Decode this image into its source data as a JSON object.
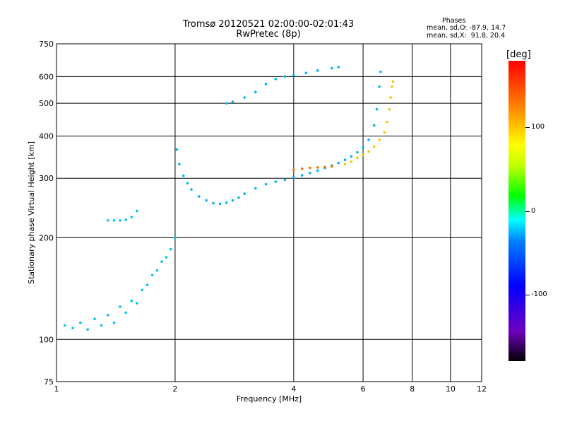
{
  "header": {
    "title_line1": "Tromsø 20120521 02:00:00-02:01:43",
    "title_line2": "RwPretec (8p)"
  },
  "phases_box": {
    "title": "Phases",
    "line_o": "mean, sd,O: -87.9, 14.7",
    "line_x": "mean, sd,X:  91.8, 20.4"
  },
  "colorbar": {
    "unit": "[deg]",
    "ticks": [
      {
        "value": 100,
        "label": "100"
      },
      {
        "value": 0,
        "label": "0"
      },
      {
        "value": -100,
        "label": "-100"
      }
    ],
    "range": [
      -180,
      180
    ]
  },
  "chart_data": {
    "type": "scatter",
    "title": "Tromsø 20120521 02:00:00-02:01:43",
    "subtitle": "RwPretec (8p)",
    "xlabel": "Frequency [MHz]",
    "ylabel": "Stationary phase Virtual Height [km]",
    "xscale": "log",
    "yscale": "log",
    "xlim": [
      1,
      12
    ],
    "ylim": [
      75,
      750
    ],
    "xticks": [
      1,
      2,
      4,
      6,
      8,
      10,
      12
    ],
    "yticks": [
      75,
      100,
      200,
      300,
      400,
      500,
      600,
      750
    ],
    "color_by": "phase (deg)",
    "grid": true,
    "traces": [
      {
        "name": "",
        "phase": -95,
        "points": [
          [
            1.05,
            110
          ],
          [
            1.1,
            108
          ],
          [
            1.15,
            112
          ],
          [
            1.2,
            107
          ],
          [
            1.25,
            115
          ],
          [
            1.3,
            110
          ],
          [
            1.35,
            118
          ],
          [
            1.4,
            112
          ],
          [
            1.45,
            125
          ],
          [
            1.5,
            120
          ],
          [
            1.55,
            130
          ],
          [
            1.6,
            128
          ],
          [
            1.65,
            140
          ],
          [
            1.7,
            145
          ],
          [
            1.75,
            155
          ],
          [
            1.8,
            160
          ],
          [
            1.85,
            170
          ],
          [
            1.9,
            175
          ],
          [
            1.95,
            185
          ],
          [
            2.0,
            200
          ]
        ]
      },
      {
        "name": "",
        "phase": -95,
        "points": [
          [
            1.35,
            225
          ],
          [
            1.4,
            225
          ],
          [
            1.45,
            225
          ],
          [
            1.5,
            226
          ],
          [
            1.55,
            230
          ],
          [
            1.6,
            240
          ]
        ]
      },
      {
        "name": "",
        "phase": -100,
        "points": [
          [
            2.02,
            365
          ],
          [
            2.05,
            330
          ],
          [
            2.1,
            305
          ],
          [
            2.15,
            290
          ],
          [
            2.2,
            278
          ],
          [
            2.3,
            265
          ],
          [
            2.4,
            258
          ],
          [
            2.5,
            253
          ],
          [
            2.6,
            252
          ],
          [
            2.7,
            254
          ],
          [
            2.8,
            258
          ],
          [
            2.9,
            263
          ],
          [
            3.0,
            270
          ],
          [
            3.2,
            280
          ],
          [
            3.4,
            288
          ],
          [
            3.6,
            293
          ],
          [
            3.8,
            297
          ],
          [
            4.0,
            302
          ],
          [
            4.2,
            306
          ],
          [
            4.4,
            311
          ],
          [
            4.6,
            316
          ],
          [
            4.8,
            322
          ],
          [
            5.0,
            327
          ],
          [
            5.2,
            333
          ],
          [
            5.4,
            340
          ],
          [
            5.6,
            348
          ],
          [
            5.8,
            358
          ],
          [
            6.0,
            370
          ],
          [
            6.2,
            390
          ],
          [
            6.4,
            430
          ],
          [
            6.5,
            480
          ],
          [
            6.6,
            560
          ],
          [
            6.65,
            620
          ]
        ]
      },
      {
        "name": "",
        "phase": -100,
        "points": [
          [
            2.7,
            500
          ],
          [
            2.8,
            505
          ],
          [
            3.0,
            520
          ],
          [
            3.2,
            540
          ],
          [
            3.4,
            570
          ],
          [
            3.6,
            590
          ],
          [
            3.8,
            600
          ],
          [
            4.0,
            605
          ],
          [
            4.3,
            615
          ],
          [
            4.6,
            625
          ],
          [
            5.0,
            635
          ],
          [
            5.2,
            640
          ]
        ]
      },
      {
        "name": "",
        "phase": 140,
        "points": [
          [
            4.0,
            318
          ],
          [
            4.2,
            320
          ],
          [
            4.4,
            322
          ],
          [
            4.6,
            323
          ],
          [
            4.8,
            324
          ],
          [
            5.0,
            325
          ]
        ]
      },
      {
        "name": "",
        "phase": 110,
        "points": [
          [
            5.4,
            330
          ],
          [
            5.6,
            336
          ],
          [
            5.8,
            345
          ],
          [
            6.0,
            352
          ],
          [
            6.2,
            360
          ],
          [
            6.4,
            372
          ],
          [
            6.6,
            390
          ],
          [
            6.8,
            410
          ],
          [
            6.9,
            440
          ],
          [
            7.0,
            480
          ],
          [
            7.05,
            520
          ],
          [
            7.1,
            560
          ],
          [
            7.15,
            580
          ]
        ]
      }
    ]
  }
}
